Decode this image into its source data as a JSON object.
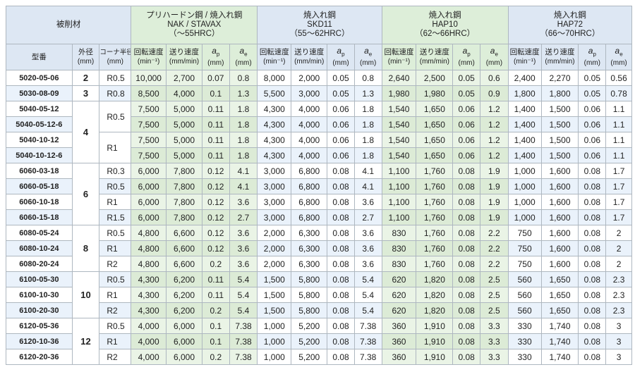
{
  "header": {
    "work_material": "被削材",
    "groups": [
      {
        "line1": "プリハードン鋼 / 焼入れ鋼",
        "line2": "NAK / STAVAX",
        "line3": "（～55HRC）"
      },
      {
        "line1": "焼入れ鋼",
        "line2": "SKD11",
        "line3": "（55～62HRC）"
      },
      {
        "line1": "焼入れ鋼",
        "line2": "HAP10",
        "line3": "（62～66HRC）"
      },
      {
        "line1": "焼入れ鋼",
        "line2": "HAP72",
        "line3": "（66～70HRC）"
      }
    ],
    "model": "型番",
    "diameter": "外径",
    "diameter_unit": "(mm)",
    "corner": "コーナ半径",
    "corner_unit": "(mm)",
    "speed": "回転速度",
    "speed_unit": "(min⁻¹)",
    "feed": "送り速度",
    "feed_unit": "(mm/min)",
    "ap_letter": "a",
    "ap_sub": "p",
    "ae_letter": "a",
    "ae_sub": "e",
    "depth_unit": "(mm)"
  },
  "rows": [
    {
      "model": "5020-05-06",
      "dia": "2",
      "r": "R0.5",
      "g": [
        [
          "10,000",
          "2,700",
          "0.07",
          "0.8"
        ],
        [
          "8,000",
          "2,000",
          "0.05",
          "0.8"
        ],
        [
          "2,640",
          "2,500",
          "0.05",
          "0.6"
        ],
        [
          "2,400",
          "2,270",
          "0.05",
          "0.56"
        ]
      ]
    },
    {
      "model": "5030-08-09",
      "dia": "3",
      "r": "R0.8",
      "g": [
        [
          "8,500",
          "4,000",
          "0.1",
          "1.3"
        ],
        [
          "5,500",
          "3,000",
          "0.05",
          "1.3"
        ],
        [
          "1,980",
          "1,980",
          "0.05",
          "0.9"
        ],
        [
          "1,800",
          "1,800",
          "0.05",
          "0.78"
        ]
      ]
    },
    {
      "model": "5040-05-12",
      "dia": "4",
      "r": "R0.5",
      "g": [
        [
          "7,500",
          "5,000",
          "0.11",
          "1.8"
        ],
        [
          "4,300",
          "4,000",
          "0.06",
          "1.8"
        ],
        [
          "1,540",
          "1,650",
          "0.06",
          "1.2"
        ],
        [
          "1,400",
          "1,500",
          "0.06",
          "1.1"
        ]
      ]
    },
    {
      "model": "5040-05-12-6",
      "dia": "4",
      "r": "R0.5",
      "g": [
        [
          "7,500",
          "5,000",
          "0.11",
          "1.8"
        ],
        [
          "4,300",
          "4,000",
          "0.06",
          "1.8"
        ],
        [
          "1,540",
          "1,650",
          "0.06",
          "1.2"
        ],
        [
          "1,400",
          "1,500",
          "0.06",
          "1.1"
        ]
      ]
    },
    {
      "model": "5040-10-12",
      "dia": "4",
      "r": "R1",
      "g": [
        [
          "7,500",
          "5,000",
          "0.11",
          "1.8"
        ],
        [
          "4,300",
          "4,000",
          "0.06",
          "1.8"
        ],
        [
          "1,540",
          "1,650",
          "0.06",
          "1.2"
        ],
        [
          "1,400",
          "1,500",
          "0.06",
          "1.1"
        ]
      ]
    },
    {
      "model": "5040-10-12-6",
      "dia": "4",
      "r": "R1",
      "g": [
        [
          "7,500",
          "5,000",
          "0.11",
          "1.8"
        ],
        [
          "4,300",
          "4,000",
          "0.06",
          "1.8"
        ],
        [
          "1,540",
          "1,650",
          "0.06",
          "1.2"
        ],
        [
          "1,400",
          "1,500",
          "0.06",
          "1.1"
        ]
      ]
    },
    {
      "model": "6060-03-18",
      "dia": "6",
      "r": "R0.3",
      "g": [
        [
          "6,000",
          "7,800",
          "0.12",
          "4.1"
        ],
        [
          "3,000",
          "6,800",
          "0.08",
          "4.1"
        ],
        [
          "1,100",
          "1,760",
          "0.08",
          "1.9"
        ],
        [
          "1,000",
          "1,600",
          "0.08",
          "1.7"
        ]
      ]
    },
    {
      "model": "6060-05-18",
      "dia": "6",
      "r": "R0.5",
      "g": [
        [
          "6,000",
          "7,800",
          "0.12",
          "4.1"
        ],
        [
          "3,000",
          "6,800",
          "0.08",
          "4.1"
        ],
        [
          "1,100",
          "1,760",
          "0.08",
          "1.9"
        ],
        [
          "1,000",
          "1,600",
          "0.08",
          "1.7"
        ]
      ]
    },
    {
      "model": "6060-10-18",
      "dia": "6",
      "r": "R1",
      "g": [
        [
          "6,000",
          "7,800",
          "0.12",
          "3.6"
        ],
        [
          "3,000",
          "6,800",
          "0.08",
          "3.6"
        ],
        [
          "1,100",
          "1,760",
          "0.08",
          "1.9"
        ],
        [
          "1,000",
          "1,600",
          "0.08",
          "1.7"
        ]
      ]
    },
    {
      "model": "6060-15-18",
      "dia": "6",
      "r": "R1.5",
      "g": [
        [
          "6,000",
          "7,800",
          "0.12",
          "2.7"
        ],
        [
          "3,000",
          "6,800",
          "0.08",
          "2.7"
        ],
        [
          "1,100",
          "1,760",
          "0.08",
          "1.9"
        ],
        [
          "1,000",
          "1,600",
          "0.08",
          "1.7"
        ]
      ]
    },
    {
      "model": "6080-05-24",
      "dia": "8",
      "r": "R0.5",
      "g": [
        [
          "4,800",
          "6,600",
          "0.12",
          "3.6"
        ],
        [
          "2,000",
          "6,300",
          "0.08",
          "3.6"
        ],
        [
          "830",
          "1,760",
          "0.08",
          "2.2"
        ],
        [
          "750",
          "1,600",
          "0.08",
          "2"
        ]
      ]
    },
    {
      "model": "6080-10-24",
      "dia": "8",
      "r": "R1",
      "g": [
        [
          "4,800",
          "6,600",
          "0.12",
          "3.6"
        ],
        [
          "2,000",
          "6,300",
          "0.08",
          "3.6"
        ],
        [
          "830",
          "1,760",
          "0.08",
          "2.2"
        ],
        [
          "750",
          "1,600",
          "0.08",
          "2"
        ]
      ]
    },
    {
      "model": "6080-20-24",
      "dia": "8",
      "r": "R2",
      "g": [
        [
          "4,800",
          "6,600",
          "0.2",
          "3.6"
        ],
        [
          "2,000",
          "6,300",
          "0.08",
          "3.6"
        ],
        [
          "830",
          "1,760",
          "0.08",
          "2.2"
        ],
        [
          "750",
          "1,600",
          "0.08",
          "2"
        ]
      ]
    },
    {
      "model": "6100-05-30",
      "dia": "10",
      "r": "R0.5",
      "g": [
        [
          "4,300",
          "6,200",
          "0.11",
          "5.4"
        ],
        [
          "1,500",
          "5,800",
          "0.08",
          "5.4"
        ],
        [
          "620",
          "1,820",
          "0.08",
          "2.5"
        ],
        [
          "560",
          "1,650",
          "0.08",
          "2.3"
        ]
      ]
    },
    {
      "model": "6100-10-30",
      "dia": "10",
      "r": "R1",
      "g": [
        [
          "4,300",
          "6,200",
          "0.11",
          "5.4"
        ],
        [
          "1,500",
          "5,800",
          "0.08",
          "5.4"
        ],
        [
          "620",
          "1,820",
          "0.08",
          "2.5"
        ],
        [
          "560",
          "1,650",
          "0.08",
          "2.3"
        ]
      ]
    },
    {
      "model": "6100-20-30",
      "dia": "10",
      "r": "R2",
      "g": [
        [
          "4,300",
          "6,200",
          "0.2",
          "5.4"
        ],
        [
          "1,500",
          "5,800",
          "0.08",
          "5.4"
        ],
        [
          "620",
          "1,820",
          "0.08",
          "2.5"
        ],
        [
          "560",
          "1,650",
          "0.08",
          "2.3"
        ]
      ]
    },
    {
      "model": "6120-05-36",
      "dia": "12",
      "r": "R0.5",
      "g": [
        [
          "4,000",
          "6,000",
          "0.1",
          "7.38"
        ],
        [
          "1,000",
          "5,200",
          "0.08",
          "7.38"
        ],
        [
          "360",
          "1,910",
          "0.08",
          "3.3"
        ],
        [
          "330",
          "1,740",
          "0.08",
          "3"
        ]
      ]
    },
    {
      "model": "6120-10-36",
      "dia": "12",
      "r": "R1",
      "g": [
        [
          "4,000",
          "6,000",
          "0.1",
          "7.38"
        ],
        [
          "1,000",
          "5,200",
          "0.08",
          "7.38"
        ],
        [
          "360",
          "1,910",
          "0.08",
          "3.3"
        ],
        [
          "330",
          "1,740",
          "0.08",
          "3"
        ]
      ]
    },
    {
      "model": "6120-20-36",
      "dia": "12",
      "r": "R2",
      "g": [
        [
          "4,000",
          "6,000",
          "0.2",
          "7.38"
        ],
        [
          "1,000",
          "5,200",
          "0.08",
          "7.38"
        ],
        [
          "360",
          "1,910",
          "0.08",
          "3.3"
        ],
        [
          "330",
          "1,740",
          "0.08",
          "3"
        ]
      ]
    }
  ],
  "diameter_groups": [
    {
      "start": 0,
      "span": 1,
      "label": "2"
    },
    {
      "start": 1,
      "span": 1,
      "label": "3"
    },
    {
      "start": 2,
      "span": 4,
      "label": "4"
    },
    {
      "start": 6,
      "span": 4,
      "label": "6"
    },
    {
      "start": 10,
      "span": 3,
      "label": "8"
    },
    {
      "start": 13,
      "span": 3,
      "label": "10"
    },
    {
      "start": 16,
      "span": 3,
      "label": "12"
    }
  ],
  "radius_merges": [
    {
      "start": 2,
      "span": 2,
      "label": "R0.5"
    },
    {
      "start": 4,
      "span": 2,
      "label": "R1"
    }
  ]
}
